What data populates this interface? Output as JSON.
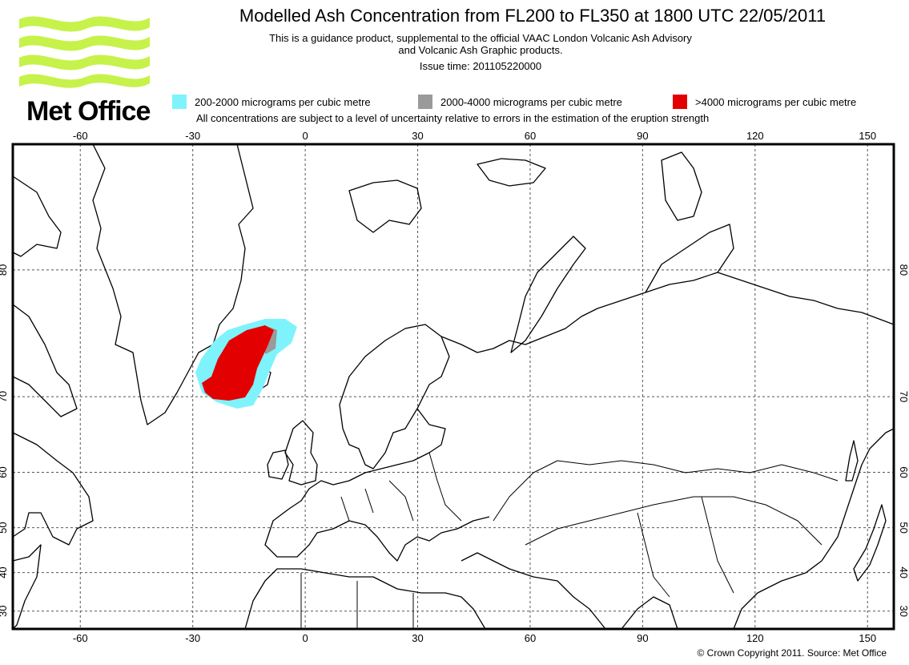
{
  "header": {
    "title": "Modelled Ash Concentration from FL200 to FL350 at 1800 UTC 22/05/2011",
    "subtitle_line1": "This is a guidance product, supplemental to the official VAAC London Volcanic Ash Advisory",
    "subtitle_line2": "and Volcanic Ash Graphic products.",
    "issue_time": "Issue time: 201105220000"
  },
  "logo": {
    "text": "Met Office",
    "color": "#c6f24a"
  },
  "legend": {
    "items": [
      {
        "label": "200-2000 micrograms per cubic metre",
        "color": "#7ff3fb"
      },
      {
        "label": "2000-4000 micrograms per cubic metre",
        "color": "#9a9a9a"
      },
      {
        "label": ">4000 micrograms per cubic metre",
        "color": "#e30000"
      }
    ],
    "note": "All concentrations are subject to a level of uncertainty relative to errors in the estimation of the eruption strength"
  },
  "map": {
    "lon_range": [
      -78,
      157
    ],
    "lat_range": [
      25,
      85
    ],
    "lon_ticks": [
      "-60",
      "-30",
      "0",
      "30",
      "60",
      "90",
      "120",
      "150"
    ],
    "lon_values": [
      -60,
      -30,
      0,
      30,
      60,
      90,
      120,
      150
    ],
    "lat_ticks": [
      "80",
      "70",
      "60",
      "50",
      "40",
      "30"
    ],
    "lat_values": [
      80,
      70,
      60,
      50,
      40,
      30
    ]
  },
  "footer": {
    "copyright": "© Crown Copyright 2011. Source: Met Office"
  }
}
